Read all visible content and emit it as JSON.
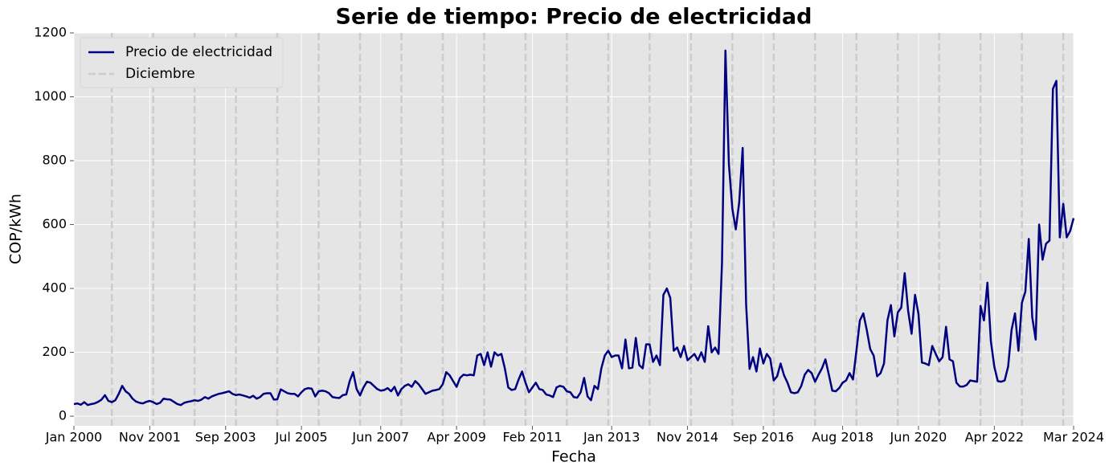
{
  "chart_data": {
    "type": "line",
    "title": "Serie de tiempo: Precio de electricidad",
    "x_label": "Fecha",
    "y_label": "COP/kWh",
    "x": [
      "2000-01",
      "2000-02",
      "2000-03",
      "2000-04",
      "2000-05",
      "2000-06",
      "2000-07",
      "2000-08",
      "2000-09",
      "2000-10",
      "2000-11",
      "2000-12",
      "2001-01",
      "2001-02",
      "2001-03",
      "2001-04",
      "2001-05",
      "2001-06",
      "2001-07",
      "2001-08",
      "2001-09",
      "2001-10",
      "2001-11",
      "2001-12",
      "2002-01",
      "2002-02",
      "2002-03",
      "2002-04",
      "2002-05",
      "2002-06",
      "2002-07",
      "2002-08",
      "2002-09",
      "2002-10",
      "2002-11",
      "2002-12",
      "2003-01",
      "2003-02",
      "2003-03",
      "2003-04",
      "2003-05",
      "2003-06",
      "2003-07",
      "2003-08",
      "2003-09",
      "2003-10",
      "2003-11",
      "2003-12",
      "2004-01",
      "2004-02",
      "2004-03",
      "2004-04",
      "2004-05",
      "2004-06",
      "2004-07",
      "2004-08",
      "2004-09",
      "2004-10",
      "2004-11",
      "2004-12",
      "2005-01",
      "2005-02",
      "2005-03",
      "2005-04",
      "2005-05",
      "2005-06",
      "2005-07",
      "2005-08",
      "2005-09",
      "2005-10",
      "2005-11",
      "2005-12",
      "2006-01",
      "2006-02",
      "2006-03",
      "2006-04",
      "2006-05",
      "2006-06",
      "2006-07",
      "2006-08",
      "2006-09",
      "2006-10",
      "2006-11",
      "2006-12",
      "2007-01",
      "2007-02",
      "2007-03",
      "2007-04",
      "2007-05",
      "2007-06",
      "2007-07",
      "2007-08",
      "2007-09",
      "2007-10",
      "2007-11",
      "2007-12",
      "2008-01",
      "2008-02",
      "2008-03",
      "2008-04",
      "2008-05",
      "2008-06",
      "2008-07",
      "2008-08",
      "2008-09",
      "2008-10",
      "2008-11",
      "2008-12",
      "2009-01",
      "2009-02",
      "2009-03",
      "2009-04",
      "2009-05",
      "2009-06",
      "2009-07",
      "2009-08",
      "2009-09",
      "2009-10",
      "2009-11",
      "2009-12",
      "2010-01",
      "2010-02",
      "2010-03",
      "2010-04",
      "2010-05",
      "2010-06",
      "2010-07",
      "2010-08",
      "2010-09",
      "2010-10",
      "2010-11",
      "2010-12",
      "2011-01",
      "2011-02",
      "2011-03",
      "2011-04",
      "2011-05",
      "2011-06",
      "2011-07",
      "2011-08",
      "2011-09",
      "2011-10",
      "2011-11",
      "2011-12",
      "2012-01",
      "2012-02",
      "2012-03",
      "2012-04",
      "2012-05",
      "2012-06",
      "2012-07",
      "2012-08",
      "2012-09",
      "2012-10",
      "2012-11",
      "2012-12",
      "2013-01",
      "2013-02",
      "2013-03",
      "2013-04",
      "2013-05",
      "2013-06",
      "2013-07",
      "2013-08",
      "2013-09",
      "2013-10",
      "2013-11",
      "2013-12",
      "2014-01",
      "2014-02",
      "2014-03",
      "2014-04",
      "2014-05",
      "2014-06",
      "2014-07",
      "2014-08",
      "2014-09",
      "2014-10",
      "2014-11",
      "2014-12",
      "2015-01",
      "2015-02",
      "2015-03",
      "2015-04",
      "2015-05",
      "2015-06",
      "2015-07",
      "2015-08",
      "2015-09",
      "2015-10",
      "2015-11",
      "2015-12",
      "2016-01",
      "2016-02",
      "2016-03",
      "2016-04",
      "2016-05",
      "2016-06",
      "2016-07",
      "2016-08",
      "2016-09",
      "2016-10",
      "2016-11",
      "2016-12",
      "2017-01",
      "2017-02",
      "2017-03",
      "2017-04",
      "2017-05",
      "2017-06",
      "2017-07",
      "2017-08",
      "2017-09",
      "2017-10",
      "2017-11",
      "2017-12",
      "2018-01",
      "2018-02",
      "2018-03",
      "2018-04",
      "2018-05",
      "2018-06",
      "2018-07",
      "2018-08",
      "2018-09",
      "2018-10",
      "2018-11",
      "2018-12",
      "2019-01",
      "2019-02",
      "2019-03",
      "2019-04",
      "2019-05",
      "2019-06",
      "2019-07",
      "2019-08",
      "2019-09",
      "2019-10",
      "2019-11",
      "2019-12",
      "2020-01",
      "2020-02",
      "2020-03",
      "2020-04",
      "2020-05",
      "2020-06",
      "2020-07",
      "2020-08",
      "2020-09",
      "2020-10",
      "2020-11",
      "2020-12",
      "2021-01",
      "2021-02",
      "2021-03",
      "2021-04",
      "2021-05",
      "2021-06",
      "2021-07",
      "2021-08",
      "2021-09",
      "2021-10",
      "2021-11",
      "2021-12",
      "2022-01",
      "2022-02",
      "2022-03",
      "2022-04",
      "2022-05",
      "2022-06",
      "2022-07",
      "2022-08",
      "2022-09",
      "2022-10",
      "2022-11",
      "2022-12",
      "2023-01",
      "2023-02",
      "2023-03",
      "2023-04",
      "2023-05",
      "2023-06",
      "2023-07",
      "2023-08",
      "2023-09",
      "2023-10",
      "2023-11",
      "2023-12",
      "2024-01",
      "2024-02",
      "2024-03"
    ],
    "series": [
      {
        "name": "Precio de electricidad",
        "color": "#000080",
        "values": [
          38,
          40,
          36,
          44,
          35,
          38,
          40,
          45,
          52,
          66,
          48,
          44,
          50,
          70,
          95,
          78,
          70,
          55,
          46,
          42,
          40,
          45,
          48,
          44,
          38,
          42,
          55,
          53,
          52,
          45,
          38,
          35,
          42,
          45,
          47,
          50,
          48,
          52,
          60,
          55,
          62,
          66,
          70,
          72,
          75,
          78,
          70,
          66,
          68,
          65,
          62,
          58,
          64,
          55,
          60,
          70,
          72,
          72,
          52,
          53,
          84,
          78,
          72,
          70,
          70,
          62,
          75,
          85,
          88,
          86,
          62,
          78,
          80,
          78,
          72,
          60,
          58,
          57,
          66,
          68,
          110,
          138,
          85,
          65,
          90,
          108,
          105,
          95,
          85,
          80,
          82,
          88,
          78,
          92,
          65,
          85,
          95,
          100,
          92,
          110,
          100,
          85,
          70,
          75,
          80,
          82,
          85,
          100,
          138,
          128,
          110,
          92,
          120,
          130,
          128,
          130,
          128,
          190,
          195,
          160,
          200,
          155,
          200,
          190,
          195,
          150,
          90,
          82,
          85,
          115,
          140,
          105,
          75,
          90,
          105,
          85,
          82,
          68,
          65,
          60,
          90,
          95,
          92,
          78,
          75,
          60,
          58,
          75,
          120,
          62,
          50,
          95,
          85,
          150,
          190,
          205,
          185,
          190,
          190,
          150,
          240,
          150,
          152,
          245,
          160,
          150,
          225,
          225,
          170,
          190,
          160,
          380,
          400,
          370,
          205,
          215,
          185,
          220,
          175,
          185,
          195,
          175,
          200,
          170,
          282,
          200,
          215,
          195,
          480,
          1145,
          790,
          650,
          585,
          670,
          840,
          350,
          148,
          185,
          140,
          212,
          165,
          195,
          180,
          112,
          125,
          165,
          128,
          105,
          75,
          72,
          75,
          95,
          130,
          145,
          135,
          108,
          130,
          150,
          178,
          130,
          80,
          78,
          88,
          105,
          112,
          135,
          115,
          205,
          300,
          322,
          270,
          210,
          190,
          125,
          135,
          165,
          300,
          348,
          250,
          325,
          340,
          448,
          330,
          258,
          380,
          320,
          168,
          165,
          160,
          220,
          195,
          172,
          185,
          280,
          178,
          172,
          105,
          93,
          93,
          98,
          112,
          110,
          108,
          345,
          300,
          418,
          235,
          155,
          110,
          108,
          112,
          155,
          270,
          322,
          205,
          355,
          390,
          555,
          310,
          240,
          600,
          490,
          540,
          550,
          1025,
          1050,
          560,
          665,
          560,
          580,
          620
        ]
      }
    ],
    "vlines": {
      "name": "Diciembre",
      "color": "#cccccc",
      "x": [
        "2000-12",
        "2001-12",
        "2002-12",
        "2003-12",
        "2004-12",
        "2005-12",
        "2006-12",
        "2007-12",
        "2008-12",
        "2009-12",
        "2010-12",
        "2011-12",
        "2012-12",
        "2013-12",
        "2014-12",
        "2015-12",
        "2016-12",
        "2017-12",
        "2018-12",
        "2019-12",
        "2020-12",
        "2021-12",
        "2022-12",
        "2023-12"
      ]
    },
    "xlim": [
      "2000-01",
      "2024-03"
    ],
    "xticks": [
      {
        "value": "2000-01",
        "label": "Jan 2000"
      },
      {
        "value": "2001-11",
        "label": "Nov 2001"
      },
      {
        "value": "2003-09",
        "label": "Sep 2003"
      },
      {
        "value": "2005-07",
        "label": "Jul 2005"
      },
      {
        "value": "2007-06",
        "label": "Jun 2007"
      },
      {
        "value": "2009-04",
        "label": "Apr 2009"
      },
      {
        "value": "2011-02",
        "label": "Feb 2011"
      },
      {
        "value": "2013-01",
        "label": "Jan 2013"
      },
      {
        "value": "2014-11",
        "label": "Nov 2014"
      },
      {
        "value": "2016-09",
        "label": "Sep 2016"
      },
      {
        "value": "2018-08",
        "label": "Aug 2018"
      },
      {
        "value": "2020-06",
        "label": "Jun 2020"
      },
      {
        "value": "2022-04",
        "label": "Apr 2022"
      },
      {
        "value": "2024-03",
        "label": "Mar 2024"
      }
    ],
    "ylim": [
      -30,
      1200
    ],
    "yticks": [
      0,
      200,
      400,
      600,
      800,
      1000,
      1200
    ],
    "grid": true,
    "legend": "upper left"
  }
}
